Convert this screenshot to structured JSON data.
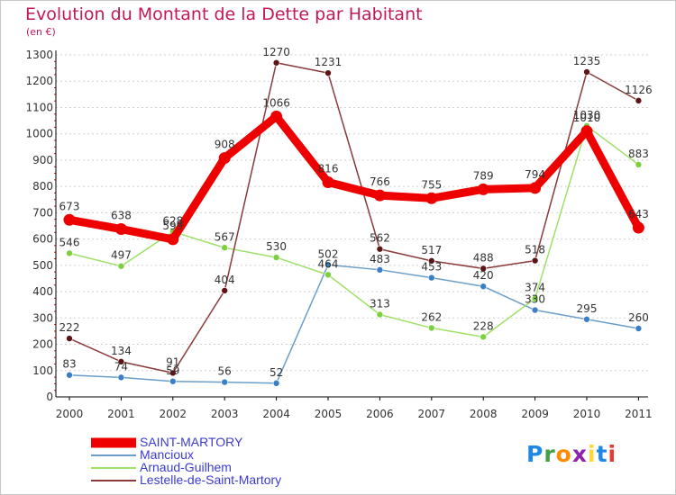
{
  "header": {
    "title": "Evolution du Montant de la Dette par Habitant",
    "unit": "(en €)"
  },
  "logo": {
    "text": "Proxiti",
    "letters": [
      "P",
      "r",
      "o",
      "x",
      "i",
      "t",
      "i"
    ],
    "colors": [
      "#1e88e5",
      "#43a047",
      "#fb8c00",
      "#8e24aa",
      "#fdd835",
      "#1e88e5",
      "#e53935"
    ]
  },
  "colors": {
    "title": "#c2185b",
    "legend_text": "#3b3bd1",
    "grid_dash": "#d0d0d0",
    "axis": "#000000",
    "tick_mark": "#e01010"
  },
  "chart_data": {
    "type": "line",
    "title": "Evolution du Montant de la Dette par Habitant",
    "subtitle": "(en €)",
    "xlabel": "",
    "ylabel": "",
    "x": [
      "2000",
      "2001",
      "2002",
      "2003",
      "2004",
      "2005",
      "2006",
      "2007",
      "2008",
      "2009",
      "2010",
      "2011"
    ],
    "ylim": [
      0,
      1300
    ],
    "yticks": [
      0,
      100,
      200,
      300,
      400,
      500,
      600,
      700,
      800,
      900,
      1000,
      1100,
      1200,
      1300
    ],
    "grid": "horizontal dashed",
    "legend_position": "bottom-left",
    "series": [
      {
        "name": "SAINT-MARTORY",
        "color": "#ee0000",
        "marker": "#ee0000",
        "thick": true,
        "values": [
          673,
          638,
          599,
          908,
          1066,
          816,
          766,
          755,
          789,
          794,
          1010,
          643
        ]
      },
      {
        "name": "Mancioux",
        "color": "#6a9ec9",
        "marker": "#3b7fc4",
        "thick": false,
        "values": [
          83,
          74,
          59,
          56,
          52,
          502,
          483,
          453,
          420,
          330,
          295,
          260
        ]
      },
      {
        "name": "Arnaud-Guilhem",
        "color": "#9ee06a",
        "marker": "#7ccf3e",
        "thick": false,
        "values": [
          546,
          497,
          628,
          567,
          530,
          464,
          313,
          262,
          228,
          374,
          1030,
          883
        ]
      },
      {
        "name": "Lestelle-de-Saint-Martory",
        "color": "#8a3a3a",
        "marker": "#5c1414",
        "thick": false,
        "values": [
          222,
          134,
          91,
          404,
          1270,
          1231,
          562,
          517,
          488,
          518,
          1235,
          1126
        ]
      }
    ]
  }
}
